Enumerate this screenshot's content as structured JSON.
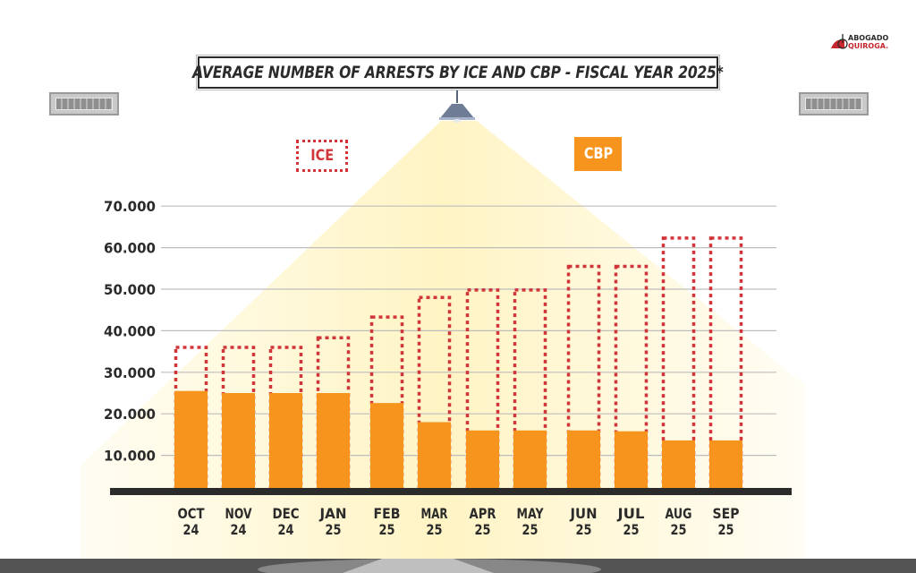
{
  "colors": {
    "ice": "#d0353a",
    "cbp": "#f7941e",
    "text": "#2b2b2b",
    "grid": "#bdbdbd",
    "baseline": "#2b2b2b",
    "light": "#fff4c4"
  },
  "logo": {
    "line1": "ABOGADO",
    "line2": "QUIROGA."
  },
  "legend": {
    "ice": "ICE",
    "cbp": "CBP"
  },
  "chart_data": {
    "type": "bar",
    "title": "AVERAGE NUMBER OF ARRESTS BY ICE AND CBP - FISCAL YEAR 2025*",
    "xlabel": "",
    "ylabel": "",
    "ylim": [
      0,
      70000
    ],
    "grid": true,
    "legend_position": "top",
    "yticks": [
      10000,
      20000,
      30000,
      40000,
      50000,
      60000,
      70000
    ],
    "ytick_labels": [
      "10.000",
      "20.000",
      "30.000",
      "40.000",
      "50.000",
      "60.000",
      "70.000"
    ],
    "categories": [
      "OCT 24",
      "NOV 24",
      "DEC 24",
      "JAN 25",
      "FEB 25",
      "MAR 25",
      "APR 25",
      "MAY 25",
      "JUN 25",
      "JUL 25",
      "AUG 25",
      "SEP 25"
    ],
    "category_labels": [
      [
        "OCT",
        "24"
      ],
      [
        "NOV",
        "24"
      ],
      [
        "DEC",
        "24"
      ],
      [
        "JAN",
        "25"
      ],
      [
        "FEB",
        "25"
      ],
      [
        "MAR",
        "25"
      ],
      [
        "APR",
        "25"
      ],
      [
        "MAY",
        "25"
      ],
      [
        "JUN",
        "25"
      ],
      [
        "JUL",
        "25"
      ],
      [
        "AUG",
        "25"
      ],
      [
        "SEP",
        "25"
      ]
    ],
    "series": [
      {
        "name": "ICE",
        "style": "dotted-outline",
        "values": [
          36000,
          36000,
          36000,
          38300,
          43300,
          48000,
          49800,
          49800,
          55500,
          55500,
          62300,
          62300
        ]
      },
      {
        "name": "CBP",
        "style": "filled",
        "values": [
          25500,
          25000,
          25000,
          25000,
          22600,
          18000,
          16000,
          16000,
          16000,
          15800,
          13600,
          13600
        ]
      }
    ]
  }
}
